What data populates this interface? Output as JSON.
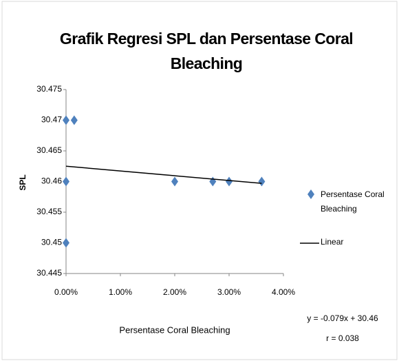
{
  "chart_data": {
    "type": "scatter",
    "title": "Grafik Regresi SPL dan Persentase Coral Bleaching",
    "x_label": "Persentase Coral Bleaching",
    "y_label": "SPL",
    "series": [
      {
        "name": "Persentase Coral Bleaching",
        "color": "#4f81bd",
        "kind": "points",
        "x": [
          0,
          0.15,
          0,
          0,
          2.0,
          2.7,
          3.0,
          3.6
        ],
        "values": [
          30.47,
          30.47,
          30.46,
          30.45,
          30.46,
          30.46,
          30.46,
          30.46
        ]
      },
      {
        "name": "Linear",
        "color": "#000000",
        "kind": "trendline",
        "x": [
          0,
          3.6
        ],
        "values": [
          30.4625,
          30.4597
        ]
      }
    ],
    "xlim": [
      0,
      4
    ],
    "xticks": [
      {
        "value": 0,
        "label": "0.00%"
      },
      {
        "value": 1,
        "label": "1.00%"
      },
      {
        "value": 2,
        "label": "2.00%"
      },
      {
        "value": 3,
        "label": "3.00%"
      },
      {
        "value": 4,
        "label": "4.00%"
      }
    ],
    "ylim": [
      30.445,
      30.475
    ],
    "yticks": [
      30.445,
      30.45,
      30.455,
      30.46,
      30.465,
      30.47,
      30.475
    ],
    "grid": false,
    "legend": "right",
    "annotations": [
      "y = -0.079x + 30.46",
      "r = 0.038"
    ]
  }
}
